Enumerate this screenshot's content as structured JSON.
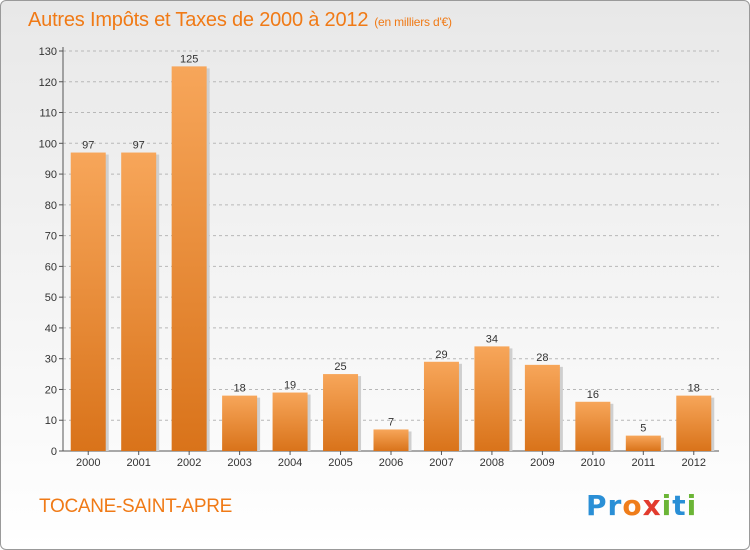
{
  "title": "Autres Impôts et Taxes de 2000 à 2012",
  "subtitle": "(en milliers d'€)",
  "commune": "TOCANE-SAINT-APRE",
  "logo": {
    "letters": [
      {
        "char": "P",
        "color": "#2a8fd6"
      },
      {
        "char": "r",
        "color": "#2a8fd6"
      },
      {
        "char": "o",
        "color": "#ef7d1a"
      },
      {
        "char": "x",
        "color": "#e23b2e"
      },
      {
        "char": "i",
        "color": "#6bb536"
      },
      {
        "char": "t",
        "color": "#2a8fd6"
      },
      {
        "char": "i",
        "color": "#6bb536"
      }
    ]
  },
  "colors": {
    "bar_top": "#f7a65a",
    "bar_bottom": "#d9731a",
    "accent": "#f07a16"
  },
  "chart_data": {
    "type": "bar",
    "categories": [
      "2000",
      "2001",
      "2002",
      "2003",
      "2004",
      "2005",
      "2006",
      "2007",
      "2008",
      "2009",
      "2010",
      "2011",
      "2012"
    ],
    "values": [
      97,
      97,
      125,
      18,
      19,
      25,
      7,
      29,
      34,
      28,
      16,
      5,
      18
    ],
    "ylim": [
      0,
      130
    ],
    "yticks": [
      0,
      10,
      20,
      30,
      40,
      50,
      60,
      70,
      80,
      90,
      100,
      110,
      120,
      130
    ],
    "grid": true,
    "xlabel": "",
    "ylabel": ""
  }
}
